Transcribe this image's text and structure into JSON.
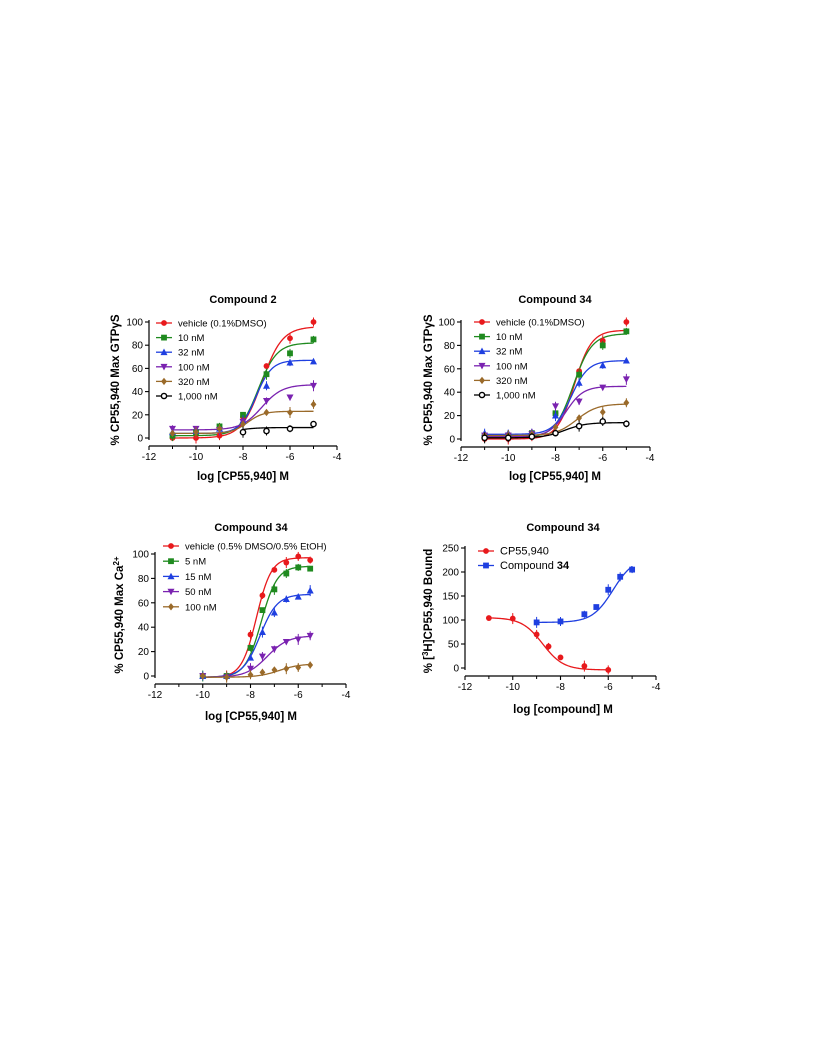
{
  "chart_data": [
    {
      "type": "line",
      "title": "Compound 2",
      "xlabel": "log [CP55,940] M",
      "ylabel": "% CP55,940 Max GTPγS",
      "xlim": [
        -12,
        -4
      ],
      "ylim": [
        0,
        100
      ],
      "xticks": [
        "-12",
        "-10",
        "-8",
        "-6",
        "-4"
      ],
      "yticks": [
        "0",
        "20",
        "40",
        "60",
        "80",
        "100"
      ],
      "legend_position": "top-left",
      "series": [
        {
          "name": "vehicle (0.1%DMSO)",
          "color": "#e8191c",
          "marker": "circle",
          "x": [
            -11,
            -10,
            -9,
            -8,
            -7,
            -6,
            -5
          ],
          "y": [
            0,
            0,
            2,
            18,
            62,
            86,
            100
          ],
          "fit": {
            "bottom": 0,
            "top": 96,
            "ec50": -7.2,
            "hill": 1.0
          }
        },
        {
          "name": "10 nM",
          "color": "#1f8a1f",
          "marker": "square",
          "x": [
            -11,
            -10,
            -9,
            -8,
            -7,
            -6,
            -5
          ],
          "y": [
            2,
            5,
            10,
            20,
            55,
            73,
            85
          ],
          "fit": {
            "bottom": 2,
            "top": 82,
            "ec50": -7.35,
            "hill": 1.1
          }
        },
        {
          "name": "32 nM",
          "color": "#1f3fe0",
          "marker": "triangle-up",
          "x": [
            -11,
            -10,
            -9,
            -8,
            -7,
            -6,
            -5
          ],
          "y": [
            5,
            6,
            8,
            15,
            45,
            65,
            66
          ],
          "fit": {
            "bottom": 4,
            "top": 67,
            "ec50": -7.45,
            "hill": 1.3
          }
        },
        {
          "name": "100 nM",
          "color": "#7a22b0",
          "marker": "triangle-down",
          "x": [
            -11,
            -10,
            -9,
            -8,
            -7,
            -6,
            -5
          ],
          "y": [
            8,
            8,
            7,
            14,
            32,
            35,
            45
          ],
          "fit": {
            "bottom": 7,
            "top": 46,
            "ec50": -7.2,
            "hill": 1.0
          }
        },
        {
          "name": "320 nM",
          "color": "#9a6a2a",
          "marker": "diamond",
          "x": [
            -11,
            -10,
            -9,
            -8,
            -7,
            -6,
            -5
          ],
          "y": [
            4,
            5,
            8,
            12,
            22,
            22,
            29
          ],
          "fit": {
            "bottom": 4,
            "top": 23,
            "ec50": -7.8,
            "hill": 1.3
          }
        },
        {
          "name": "1,000 nM",
          "color": "#000000",
          "marker": "circle-open",
          "x": [
            -8,
            -7,
            -6,
            -5
          ],
          "y": [
            5,
            6,
            8,
            12
          ],
          "fit": {
            "bottom": 2,
            "top": 9,
            "ec50": -8.5,
            "hill": 1.0
          }
        }
      ]
    },
    {
      "type": "line",
      "title": "Compound 34",
      "xlabel": "log [CP55,940] M",
      "ylabel": "% CP55,940 Max GTPγS",
      "xlim": [
        -12,
        -4
      ],
      "ylim": [
        0,
        100
      ],
      "xticks": [
        "-12",
        "-10",
        "-8",
        "-6",
        "-4"
      ],
      "yticks": [
        "0",
        "20",
        "40",
        "60",
        "80",
        "100"
      ],
      "legend_position": "top-left",
      "series": [
        {
          "name": "vehicle (0.1%DMSO)",
          "color": "#e8191c",
          "marker": "circle",
          "x": [
            -11,
            -10,
            -9,
            -8,
            -7,
            -6,
            -5
          ],
          "y": [
            0,
            0,
            2,
            22,
            58,
            84,
            100
          ],
          "fit": {
            "bottom": 0,
            "top": 93,
            "ec50": -7.2,
            "hill": 1.2
          }
        },
        {
          "name": "10 nM",
          "color": "#1f8a1f",
          "marker": "square",
          "x": [
            -11,
            -10,
            -9,
            -8,
            -7,
            -6,
            -5
          ],
          "y": [
            2,
            3,
            5,
            22,
            55,
            80,
            92
          ],
          "fit": {
            "bottom": 1,
            "top": 90,
            "ec50": -7.25,
            "hill": 1.1
          }
        },
        {
          "name": "32 nM",
          "color": "#1f3fe0",
          "marker": "triangle-up",
          "x": [
            -11,
            -10,
            -9,
            -8,
            -7,
            -6,
            -5
          ],
          "y": [
            5,
            5,
            6,
            20,
            48,
            63,
            67
          ],
          "fit": {
            "bottom": 4,
            "top": 67,
            "ec50": -7.35,
            "hill": 1.2
          }
        },
        {
          "name": "100 nM",
          "color": "#7a22b0",
          "marker": "triangle-down",
          "x": [
            -11,
            -10,
            -9,
            -8,
            -7,
            -6,
            -5
          ],
          "y": [
            3,
            3,
            4,
            28,
            32,
            44,
            51
          ],
          "fit": {
            "bottom": 2,
            "top": 45,
            "ec50": -7.55,
            "hill": 1.2
          }
        },
        {
          "name": "320 nM",
          "color": "#9a6a2a",
          "marker": "diamond",
          "x": [
            -11,
            -10,
            -9,
            -8,
            -7,
            -6,
            -5
          ],
          "y": [
            3,
            3,
            4,
            10,
            18,
            23,
            31
          ],
          "fit": {
            "bottom": 3,
            "top": 30,
            "ec50": -7.1,
            "hill": 1.0
          }
        },
        {
          "name": "1,000 nM",
          "color": "#000000",
          "marker": "circle-open",
          "x": [
            -11,
            -10,
            -9,
            -8,
            -7,
            -6,
            -5
          ],
          "y": [
            1,
            1,
            2,
            5,
            11,
            15,
            13
          ],
          "fit": {
            "bottom": 1,
            "top": 14,
            "ec50": -7.6,
            "hill": 1.0
          }
        }
      ]
    },
    {
      "type": "line",
      "title": "Compound 34",
      "xlabel": "log [CP55,940] M",
      "ylabel": "% CP55,940 Max Ca²⁺",
      "xlim": [
        -12,
        -4
      ],
      "ylim": [
        0,
        100
      ],
      "xticks": [
        "-12",
        "-10",
        "-8",
        "-6",
        "-4"
      ],
      "yticks": [
        "0",
        "20",
        "40",
        "60",
        "80",
        "100"
      ],
      "legend_position": "top-left",
      "series": [
        {
          "name": "vehicle (0.5% DMSO/0.5% EtOH)",
          "color": "#e8191c",
          "marker": "circle",
          "x": [
            -10,
            -9,
            -8,
            -7.5,
            -7,
            -6.5,
            -6,
            -5.5
          ],
          "y": [
            0,
            0,
            34,
            66,
            87,
            93,
            98,
            95
          ],
          "fit": {
            "bottom": -1,
            "top": 97,
            "ec50": -7.75,
            "hill": 1.4
          }
        },
        {
          "name": "5 nM",
          "color": "#1f8a1f",
          "marker": "square",
          "x": [
            -10,
            -9,
            -8,
            -7.5,
            -7,
            -6.5,
            -6,
            -5.5
          ],
          "y": [
            0,
            0,
            23,
            54,
            71,
            84,
            89,
            88
          ],
          "fit": {
            "bottom": -1,
            "top": 90,
            "ec50": -7.55,
            "hill": 1.3
          }
        },
        {
          "name": "15 nM",
          "color": "#1f3fe0",
          "marker": "triangle-up",
          "x": [
            -10,
            -9,
            -8,
            -7.5,
            -7,
            -6.5,
            -6,
            -5.5
          ],
          "y": [
            0,
            0,
            15,
            36,
            52,
            63,
            65,
            70
          ],
          "fit": {
            "bottom": -1,
            "top": 67,
            "ec50": -7.6,
            "hill": 1.2
          }
        },
        {
          "name": "50 nM",
          "color": "#7a22b0",
          "marker": "triangle-down",
          "x": [
            -10,
            -9,
            -8,
            -7.5,
            -7,
            -6.5,
            -6,
            -5.5
          ],
          "y": [
            0,
            -1,
            6,
            16,
            22,
            28,
            30,
            33
          ],
          "fit": {
            "bottom": -1,
            "top": 33,
            "ec50": -7.3,
            "hill": 1.0
          }
        },
        {
          "name": "100 nM",
          "color": "#9a6a2a",
          "marker": "diamond",
          "x": [
            -10,
            -9,
            -8,
            -7.5,
            -7,
            -6.5,
            -6,
            -5.5
          ],
          "y": [
            0,
            -1,
            1,
            3,
            5,
            6,
            7,
            9
          ],
          "fit": {
            "bottom": -1,
            "top": 10,
            "ec50": -6.8,
            "hill": 1.0
          }
        }
      ]
    },
    {
      "type": "line",
      "title": "Compound 34",
      "xlabel": "log [compound] M",
      "ylabel": "% [³H]CP55,940 Bound",
      "xlim": [
        -12,
        -4
      ],
      "ylim": [
        0,
        250
      ],
      "xticks": [
        "-12",
        "-10",
        "-8",
        "-6",
        "-4"
      ],
      "yticks": [
        "0",
        "50",
        "100",
        "150",
        "200",
        "250"
      ],
      "legend_position": "top-left",
      "series": [
        {
          "name": "CP55,940",
          "color": "#e8191c",
          "marker": "circle",
          "x": [
            -11,
            -10,
            -9,
            -8.5,
            -8,
            -7,
            -6
          ],
          "y": [
            104,
            103,
            70,
            45,
            22,
            4,
            -4
          ],
          "fit": {
            "bottom": -4,
            "top": 105,
            "ec50": -8.75,
            "hill": -1.0
          }
        },
        {
          "name": "Compound 34",
          "color": "#1f3fe0",
          "marker": "square",
          "x": [
            -9,
            -8,
            -7,
            -6.5,
            -6,
            -5.5,
            -5
          ],
          "y": [
            95,
            97,
            112,
            127,
            163,
            190,
            205
          ],
          "fit": {
            "bottom": 95,
            "top": 230,
            "ec50": -5.8,
            "hill": 1.0
          }
        }
      ]
    }
  ]
}
